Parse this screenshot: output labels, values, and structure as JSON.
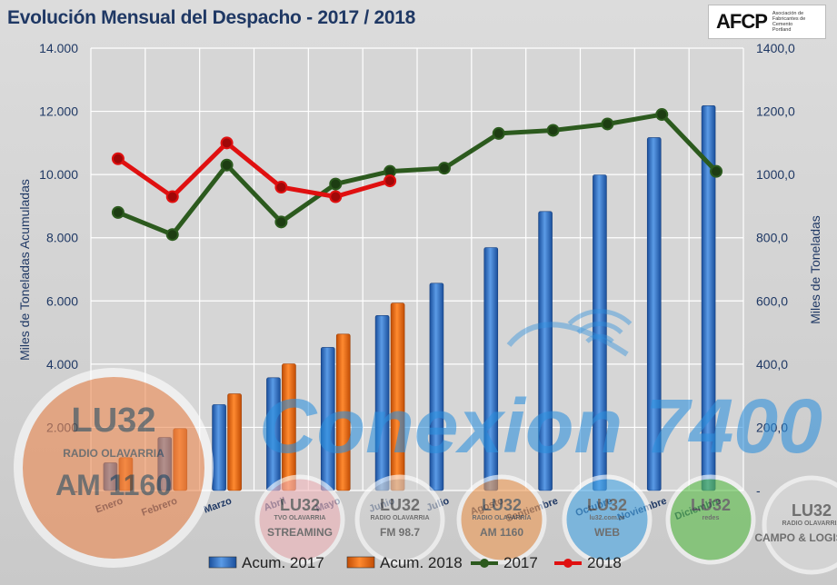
{
  "header": {
    "title": "Evolución Mensual del Despacho - 2017 / 2018",
    "logo_text": "AFCP",
    "logo_org": "Asociación de Fabricantes de Cemento Portland"
  },
  "colors": {
    "bar_2017": "#2e6fc4",
    "bar_2018": "#e8620f",
    "line_2017": "#2c5a1e",
    "line_2018": "#e01010",
    "axis_text": "#1f3864"
  },
  "chart_data": {
    "type": "bar",
    "title": "Evolución Mensual del Despacho - 2017 / 2018",
    "categories": [
      "Enero",
      "Febrero",
      "Marzo",
      "Abril",
      "Mayo",
      "Junio",
      "Julio",
      "Agosto",
      "Septiembre",
      "Octubre",
      "Noviembre",
      "Diciembre"
    ],
    "ylabel_left": "Miles de Toneladas Acumuladas",
    "ylabel_right": "Miles de Toneladas",
    "ylim_left": [
      0,
      14000
    ],
    "ylim_right": [
      0,
      1400
    ],
    "yticks_left": [
      "-",
      "2.000",
      "4.000",
      "6.000",
      "8.000",
      "10.000",
      "12.000",
      "14.000"
    ],
    "yticks_right": [
      "-",
      "200,0",
      "400,0",
      "600,0",
      "800,0",
      "1000,0",
      "1200,0",
      "1400,0"
    ],
    "grid": true,
    "legend_position": "bottom",
    "series": [
      {
        "name": "Acum. 2017",
        "kind": "bar",
        "axis": "left",
        "values": [
          880,
          1680,
          2720,
          3570,
          4530,
          5540,
          6560,
          7690,
          8830,
          9990,
          11170,
          12180
        ]
      },
      {
        "name": "Acum. 2018",
        "kind": "bar",
        "axis": "left",
        "values": [
          1040,
          1960,
          3060,
          4010,
          4950,
          5930,
          null,
          null,
          null,
          null,
          null,
          null
        ]
      },
      {
        "name": "2017",
        "kind": "line",
        "axis": "right",
        "values": [
          880,
          810,
          1030,
          850,
          970,
          1010,
          1020,
          1130,
          1140,
          1160,
          1190,
          1010
        ]
      },
      {
        "name": "2018",
        "kind": "line",
        "axis": "right",
        "values": [
          1050,
          930,
          1100,
          960,
          930,
          980,
          null,
          null,
          null,
          null,
          null,
          null
        ]
      }
    ]
  },
  "watermarks": {
    "main_text": "Conexion 7400",
    "badges": [
      {
        "line1": "LU32",
        "line2": "RADIO OLAVARRIA",
        "line3": "AM 1160"
      },
      {
        "line1": "LU32",
        "line2": "TVO OLAVARRIA",
        "line3": "STREAMING"
      },
      {
        "line1": "LU32",
        "line2": "RADIO OLAVARRIA",
        "line3": "FM 98.7"
      },
      {
        "line1": "LU32",
        "line2": "RADIO OLAVARRIA",
        "line3": "AM 1160"
      },
      {
        "line1": "LU32",
        "line2": "lu32.com.ar",
        "line3": "WEB"
      },
      {
        "line1": "LU32",
        "line2": "redes",
        "line3": ""
      },
      {
        "line1": "LU32",
        "line2": "RADIO OLAVARRIA",
        "line3": "CAMPO & LOGISTICA"
      }
    ]
  }
}
